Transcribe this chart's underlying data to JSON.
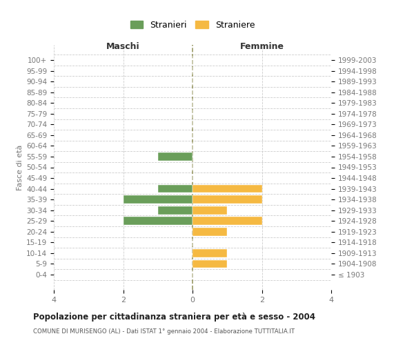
{
  "age_groups": [
    "100+",
    "95-99",
    "90-94",
    "85-89",
    "80-84",
    "75-79",
    "70-74",
    "65-69",
    "60-64",
    "55-59",
    "50-54",
    "45-49",
    "40-44",
    "35-39",
    "30-34",
    "25-29",
    "20-24",
    "15-19",
    "10-14",
    "5-9",
    "0-4"
  ],
  "birth_years": [
    "≤ 1903",
    "1904-1908",
    "1909-1913",
    "1914-1918",
    "1919-1923",
    "1924-1928",
    "1929-1933",
    "1934-1938",
    "1939-1943",
    "1944-1948",
    "1949-1953",
    "1954-1958",
    "1959-1963",
    "1964-1968",
    "1969-1973",
    "1974-1978",
    "1979-1983",
    "1984-1988",
    "1989-1993",
    "1994-1998",
    "1999-2003"
  ],
  "maschi": [
    0,
    0,
    0,
    0,
    0,
    0,
    0,
    0,
    0,
    1,
    0,
    0,
    1,
    2,
    1,
    2,
    0,
    0,
    0,
    0,
    0
  ],
  "femmine": [
    0,
    0,
    0,
    0,
    0,
    0,
    0,
    0,
    0,
    0,
    0,
    0,
    2,
    2,
    1,
    2,
    1,
    0,
    1,
    1,
    0
  ],
  "color_maschi": "#6a9e5a",
  "color_femmine": "#f5b942",
  "title_main": "Popolazione per cittadinanza straniera per età e sesso - 2004",
  "subtitle": "COMUNE DI MURISENGO (AL) - Dati ISTAT 1° gennaio 2004 - Elaborazione TUTTITALIA.IT",
  "xlabel_left": "Maschi",
  "xlabel_right": "Femmine",
  "ylabel_left": "Fasce di età",
  "legend_maschi": "Stranieri",
  "legend_femmine": "Straniere",
  "xlim": 4,
  "xticks": [
    -4,
    -2,
    0,
    2,
    4
  ],
  "background_color": "#ffffff",
  "grid_color": "#cccccc",
  "center_line_color": "#999966",
  "bar_height": 0.75,
  "text_color": "#777777",
  "title_color": "#222222"
}
